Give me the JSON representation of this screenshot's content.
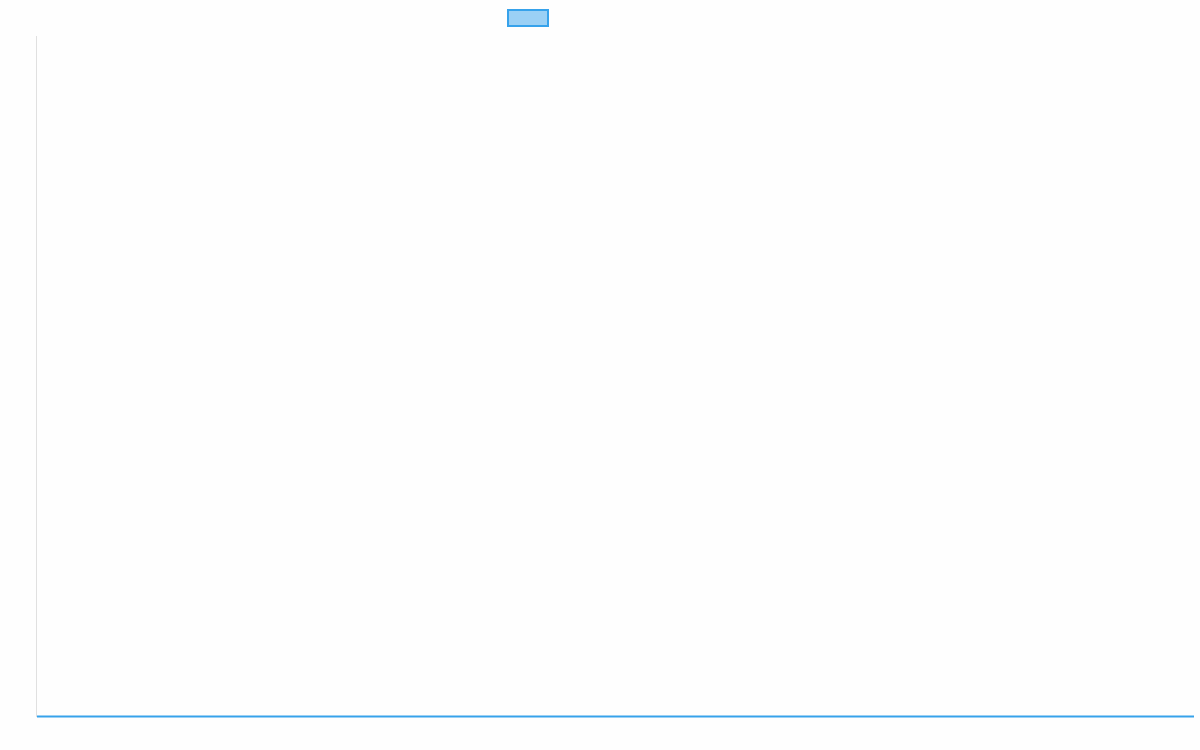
{
  "chart_data": {
    "type": "line",
    "title": "",
    "xlabel": "",
    "ylabel": "",
    "categories": [],
    "series": [
      {
        "values": [],
        "color": "#36a2eb",
        "fill": "#9ad0f5"
      }
    ],
    "legend": {
      "position": "top",
      "entries": [
        {
          "label": "",
          "color": "#36a2eb"
        }
      ]
    },
    "grid": false
  }
}
